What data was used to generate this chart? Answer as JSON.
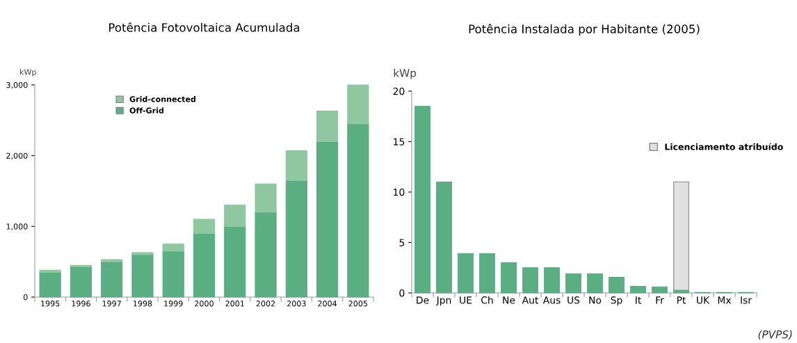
{
  "chart_data": [
    {
      "type": "bar",
      "title": "Potência Fotovoltaica Acumulada",
      "ylabel": "kWp",
      "stacked": true,
      "legend": "top left",
      "grid": false,
      "categories": [
        "1995",
        "1996",
        "1997",
        "1998",
        "1999",
        "2000",
        "2001",
        "2002",
        "2003",
        "2004",
        "2005"
      ],
      "ylim": [
        0,
        3000
      ],
      "yticks": [
        {
          "value": 0,
          "label": "0"
        },
        {
          "value": 1000,
          "label": "1,000"
        },
        {
          "value": 2000,
          "label": "2,000"
        },
        {
          "value": 3000,
          "label": "3,000"
        }
      ],
      "series": [
        {
          "name": "Off-Grid",
          "color": "#5aae82",
          "values": [
            350,
            430,
            500,
            600,
            650,
            900,
            1000,
            1200,
            1650,
            2200,
            2450
          ]
        },
        {
          "name": "Grid-connected",
          "color": "#8fc8a0",
          "values": [
            30,
            20,
            30,
            30,
            100,
            200,
            300,
            400,
            420,
            430,
            550
          ]
        }
      ]
    },
    {
      "type": "bar",
      "title": "Potência Instalada por Habitante (2005)",
      "ylabel": "kWp",
      "stacked": true,
      "legend": "top right",
      "grid": false,
      "categories": [
        "De",
        "Jpn",
        "UE",
        "Ch",
        "Ne",
        "Aut",
        "Aus",
        "US",
        "No",
        "Sp",
        "It",
        "Fr",
        "Pt",
        "UK",
        "Mx",
        "Isr"
      ],
      "ylim": [
        0,
        20
      ],
      "yticks": [
        0,
        5,
        10,
        15,
        20
      ],
      "series": [
        {
          "color": "#5aae82",
          "values": [
            18.5,
            11,
            3.9,
            3.9,
            3.0,
            2.5,
            2.5,
            1.9,
            1.9,
            1.55,
            0.65,
            0.6,
            0.25,
            0.05,
            0.05,
            0.05
          ]
        },
        {
          "name": "Licenciamento atribuído",
          "color": "#e0e0e0",
          "values": [
            null,
            null,
            null,
            null,
            null,
            null,
            null,
            null,
            null,
            null,
            null,
            null,
            10.75,
            null,
            null,
            null
          ]
        }
      ],
      "annotations": [
        "(PVPS)"
      ]
    }
  ]
}
